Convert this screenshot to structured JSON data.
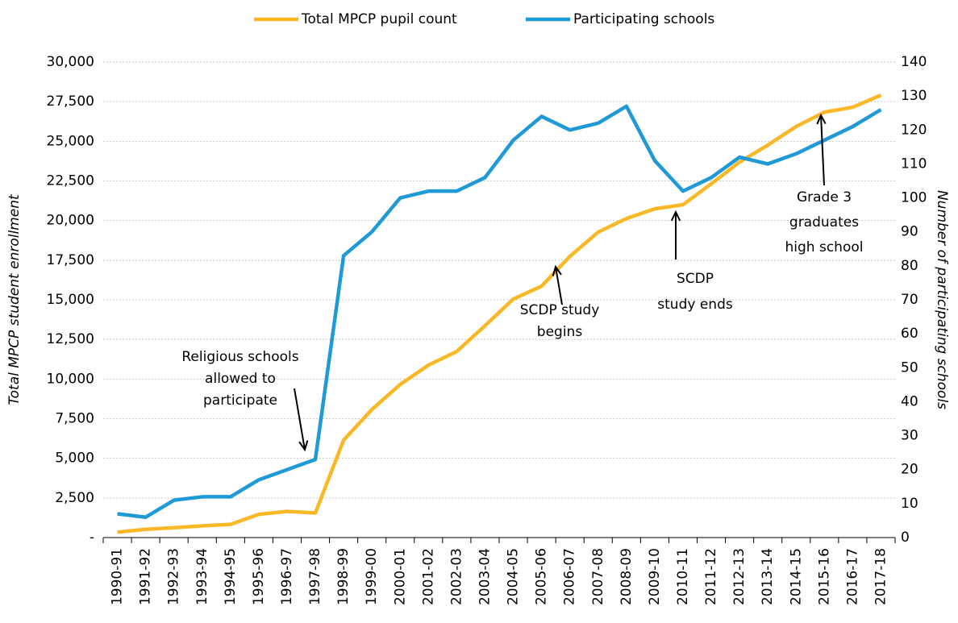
{
  "chart_data": {
    "type": "line",
    "legend": "top",
    "grid": true,
    "ylabel": "Total MPCP student enrollment",
    "y2label": "Number of participating schools",
    "categories": [
      "1990-91",
      "1991-92",
      "1992-93",
      "1993-94",
      "1994-95",
      "1995-96",
      "1996-97",
      "1997-98",
      "1998-99",
      "1999-00",
      "2000-01",
      "2001-02",
      "2002-03",
      "2003-04",
      "2004-05",
      "2005-06",
      "2006-07",
      "2007-08",
      "2008-09",
      "2009-10",
      "2010-11",
      "2011-12",
      "2012-13",
      "2013-14",
      "2014-15",
      "2015-16",
      "2016-17",
      "2017-18"
    ],
    "series": [
      {
        "name": "Total MPCP pupil count",
        "color": "#fbb826",
        "axis": "y",
        "values": [
          340,
          520,
          620,
          740,
          830,
          1470,
          1650,
          1550,
          6150,
          8080,
          9660,
          10880,
          11740,
          13370,
          15050,
          15860,
          17740,
          19270,
          20130,
          20740,
          21000,
          22320,
          23690,
          24760,
          25930,
          26840,
          27150,
          27910
        ]
      },
      {
        "name": "Participating schools",
        "color": "#1f9ad6",
        "axis": "y2",
        "values": [
          7,
          6,
          11,
          12,
          12,
          17,
          20,
          23,
          83,
          90,
          100,
          102,
          102,
          106,
          117,
          124,
          120,
          122,
          127,
          111,
          102,
          106,
          112,
          110,
          113,
          117,
          121,
          126
        ]
      }
    ],
    "ylim": [
      0,
      30000
    ],
    "yticks": [
      {
        "value": 0,
        "label": "-"
      },
      {
        "value": 2500,
        "label": "2,500"
      },
      {
        "value": 5000,
        "label": "5,000"
      },
      {
        "value": 7500,
        "label": "7,500"
      },
      {
        "value": 10000,
        "label": "10,000"
      },
      {
        "value": 12500,
        "label": "12,500"
      },
      {
        "value": 15000,
        "label": "15,000"
      },
      {
        "value": 17500,
        "label": "17,500"
      },
      {
        "value": 20000,
        "label": "20,000"
      },
      {
        "value": 22500,
        "label": "22,500"
      },
      {
        "value": 25000,
        "label": "25,000"
      },
      {
        "value": 27500,
        "label": "27,500"
      },
      {
        "value": 30000,
        "label": "30,000"
      }
    ],
    "y2lim": [
      0,
      140
    ],
    "y2ticks": [
      0,
      10,
      20,
      30,
      40,
      50,
      60,
      70,
      80,
      90,
      100,
      110,
      120,
      130,
      140
    ],
    "annotations": [
      {
        "lines": [
          "Religious schools",
          "allowed to",
          "participate"
        ]
      },
      {
        "lines": [
          "SCDP study",
          "begins"
        ]
      },
      {
        "lines": [
          "SCDP",
          "study ends"
        ]
      },
      {
        "lines": [
          "Grade 3",
          "graduates",
          "high school"
        ]
      }
    ]
  }
}
